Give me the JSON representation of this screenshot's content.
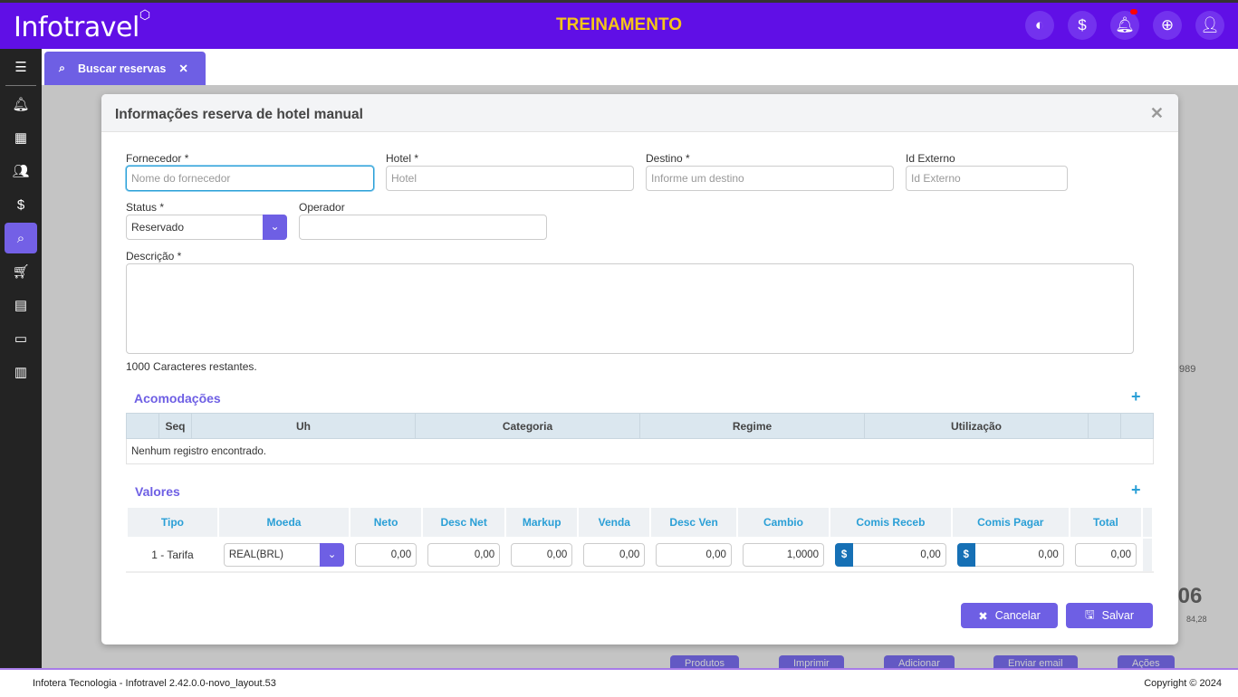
{
  "header": {
    "logo": "Infotravel",
    "title": "TREINAMENTO",
    "icons": [
      "theme-icon",
      "dollar-icon",
      "bell-icon",
      "globe-icon",
      "user-icon"
    ]
  },
  "sidebar": {
    "icons": [
      "menu-icon",
      "bell-icon",
      "building-icon",
      "users-icon",
      "dollar-icon",
      "search-icon",
      "cart-icon",
      "document-icon",
      "money-icon",
      "chart-icon"
    ]
  },
  "tab": {
    "label": "Buscar reservas"
  },
  "background": {
    "total": ",06",
    "subtotal": "84,28",
    "code": "989",
    "buttons": [
      "Produtos",
      "Imprimir",
      "Adicionar",
      "Enviar email",
      "Ações"
    ]
  },
  "modal": {
    "title": "Informações reserva de hotel manual",
    "fields": {
      "fornecedor": {
        "label": "Fornecedor *",
        "placeholder": "Nome do fornecedor"
      },
      "hotel": {
        "label": "Hotel *",
        "placeholder": "Hotel"
      },
      "destino": {
        "label": "Destino *",
        "placeholder": "Informe um destino"
      },
      "id_externo": {
        "label": "Id Externo",
        "placeholder": "Id Externo"
      },
      "status": {
        "label": "Status *",
        "value": "Reservado"
      },
      "operador": {
        "label": "Operador",
        "value": ""
      },
      "descricao": {
        "label": "Descrição *",
        "value": ""
      }
    },
    "chars_remaining": "1000 Caracteres restantes.",
    "acomodacoes": {
      "title": "Acomodações",
      "columns": [
        "",
        "Seq",
        "Uh",
        "Categoria",
        "Regime",
        "Utilização",
        "",
        ""
      ],
      "empty": "Nenhum registro encontrado."
    },
    "valores": {
      "title": "Valores",
      "columns": [
        "Tipo",
        "Moeda",
        "Neto",
        "Desc Net",
        "Markup",
        "Venda",
        "Desc Ven",
        "Cambio",
        "Comis Receb",
        "Comis Pagar",
        "Total"
      ],
      "row": {
        "tipo": "1 - Tarifa",
        "moeda": "REAL(BRL)",
        "neto": "0,00",
        "desc_net": "0,00",
        "markup": "0,00",
        "venda": "0,00",
        "desc_ven": "0,00",
        "cambio": "1,0000",
        "comis_receb": "0,00",
        "comis_pagar": "0,00",
        "total": "0,00"
      }
    },
    "buttons": {
      "cancel": "Cancelar",
      "save": "Salvar"
    }
  },
  "footer": {
    "left": "Infotera Tecnologia - Infotravel 2.42.0.0-novo_layout.53",
    "right": "Copyright © 2024"
  }
}
